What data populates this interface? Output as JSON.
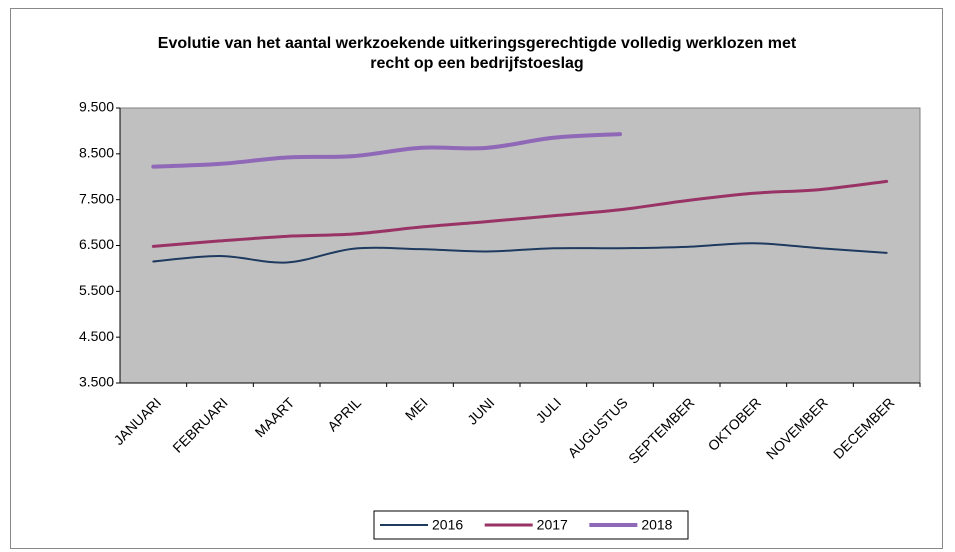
{
  "chart_data": {
    "type": "line",
    "title": "Evolutie van het aantal werkzoekende uitkeringsgerechtigde volledig werklozen met recht op een bedrijfstoeslag",
    "categories": [
      "JANUARI",
      "FEBRUARI",
      "MAART",
      "APRIL",
      "MEI",
      "JUNI",
      "JULI",
      "AUGUSTUS",
      "SEPTEMBER",
      "OKTOBER",
      "NOVEMBER",
      "DECEMBER"
    ],
    "series": [
      {
        "name": "2016",
        "color": "#1f3a5f",
        "width": 2,
        "values": [
          6150,
          6270,
          6130,
          6430,
          6420,
          6370,
          6440,
          6440,
          6470,
          6550,
          6440,
          6340
        ]
      },
      {
        "name": "2017",
        "color": "#993366",
        "width": 3,
        "values": [
          6480,
          6600,
          6700,
          6750,
          6900,
          7020,
          7150,
          7280,
          7480,
          7640,
          7720,
          7900
        ]
      },
      {
        "name": "2018",
        "color": "#9068b8",
        "width": 4,
        "values": [
          8220,
          8280,
          8420,
          8450,
          8630,
          8630,
          8850,
          8930,
          null,
          null,
          null,
          null
        ]
      }
    ],
    "ylim": [
      3500,
      9500
    ],
    "yticks": [
      {
        "value": 3500,
        "label": "3.500"
      },
      {
        "value": 4500,
        "label": "4.500"
      },
      {
        "value": 5500,
        "label": "5.500"
      },
      {
        "value": 6500,
        "label": "6.500"
      },
      {
        "value": 7500,
        "label": "7.500"
      },
      {
        "value": 8500,
        "label": "8.500"
      },
      {
        "value": 9500,
        "label": "9.500"
      }
    ],
    "plot_background": "#c0c0c0",
    "legend": "bottom"
  }
}
